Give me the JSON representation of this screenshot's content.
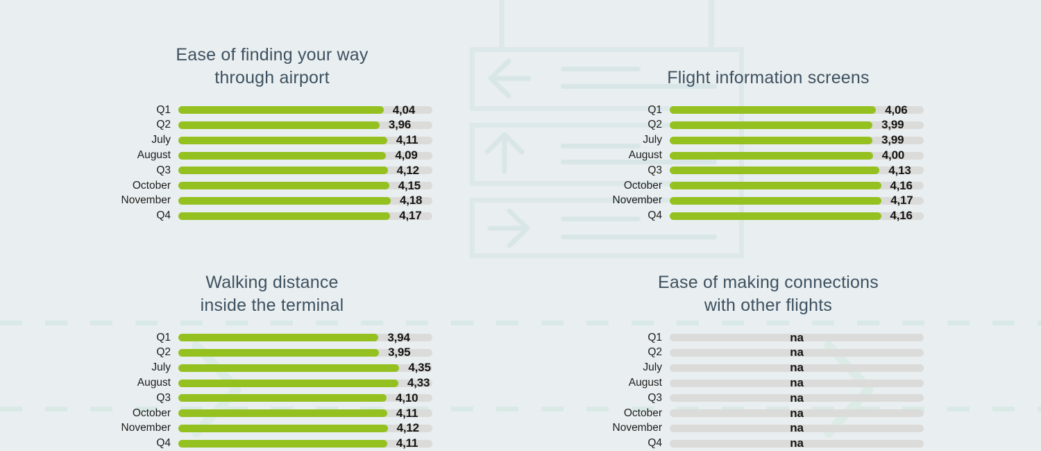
{
  "colors": {
    "background": "#e9eef0",
    "bar_green": "#94c11f",
    "bar_track_gray": "#dbdbd9",
    "title_slate": "#3d5160",
    "decor_sign": "#dde8ea",
    "decor_sign_inner": "#d9e6e8",
    "decor_dash": "#d9e9e5",
    "decor_chevron": "#dcebe6",
    "value_text": "#141414",
    "label_text": "#1c1c1a"
  },
  "categories": [
    "Q1",
    "Q2",
    "July",
    "August",
    "Q3",
    "October",
    "November",
    "Q4"
  ],
  "chart_data": [
    {
      "type": "bar",
      "orientation": "horizontal",
      "title_lines": [
        "Ease of finding your way",
        "through airport"
      ],
      "categories": [
        "Q1",
        "Q2",
        "July",
        "August",
        "Q3",
        "October",
        "November",
        "Q4"
      ],
      "values": [
        4.04,
        3.96,
        4.11,
        4.09,
        4.12,
        4.15,
        4.18,
        4.17
      ],
      "value_labels": [
        "4,04",
        "3,96",
        "4,11",
        "4,09",
        "4,12",
        "4,15",
        "4,18",
        "4,17"
      ],
      "xlim": [
        0,
        5
      ],
      "grid": false,
      "legend": false
    },
    {
      "type": "bar",
      "orientation": "horizontal",
      "title_lines": [
        "Flight information screens"
      ],
      "categories": [
        "Q1",
        "Q2",
        "July",
        "August",
        "Q3",
        "October",
        "November",
        "Q4"
      ],
      "values": [
        4.06,
        3.99,
        3.99,
        4.0,
        4.13,
        4.16,
        4.17,
        4.16
      ],
      "value_labels": [
        "4,06",
        "3,99",
        "3,99",
        "4,00",
        "4,13",
        "4,16",
        "4,17",
        "4,16"
      ],
      "xlim": [
        0,
        5
      ],
      "grid": false,
      "legend": false
    },
    {
      "type": "bar",
      "orientation": "horizontal",
      "title_lines": [
        "Walking distance",
        "inside the terminal"
      ],
      "categories": [
        "Q1",
        "Q2",
        "July",
        "August",
        "Q3",
        "October",
        "November",
        "Q4"
      ],
      "values": [
        3.94,
        3.95,
        4.35,
        4.33,
        4.1,
        4.11,
        4.12,
        4.11
      ],
      "value_labels": [
        "3,94",
        "3,95",
        "4,35",
        "4,33",
        "4,10",
        "4,11",
        "4,12",
        "4,11"
      ],
      "xlim": [
        0,
        5
      ],
      "grid": false,
      "legend": false
    },
    {
      "type": "bar",
      "orientation": "horizontal",
      "title_lines": [
        "Ease of making connections",
        "with other flights"
      ],
      "categories": [
        "Q1",
        "Q2",
        "July",
        "August",
        "Q3",
        "October",
        "November",
        "Q4"
      ],
      "values": [
        null,
        null,
        null,
        null,
        null,
        null,
        null,
        null
      ],
      "value_labels": [
        "na",
        "na",
        "na",
        "na",
        "na",
        "na",
        "na",
        "na"
      ],
      "xlim": [
        0,
        5
      ],
      "grid": false,
      "legend": false
    }
  ],
  "decor": {
    "sign_arrow_names": [
      "arrow-left-icon",
      "arrow-up-icon",
      "arrow-right-icon"
    ]
  }
}
